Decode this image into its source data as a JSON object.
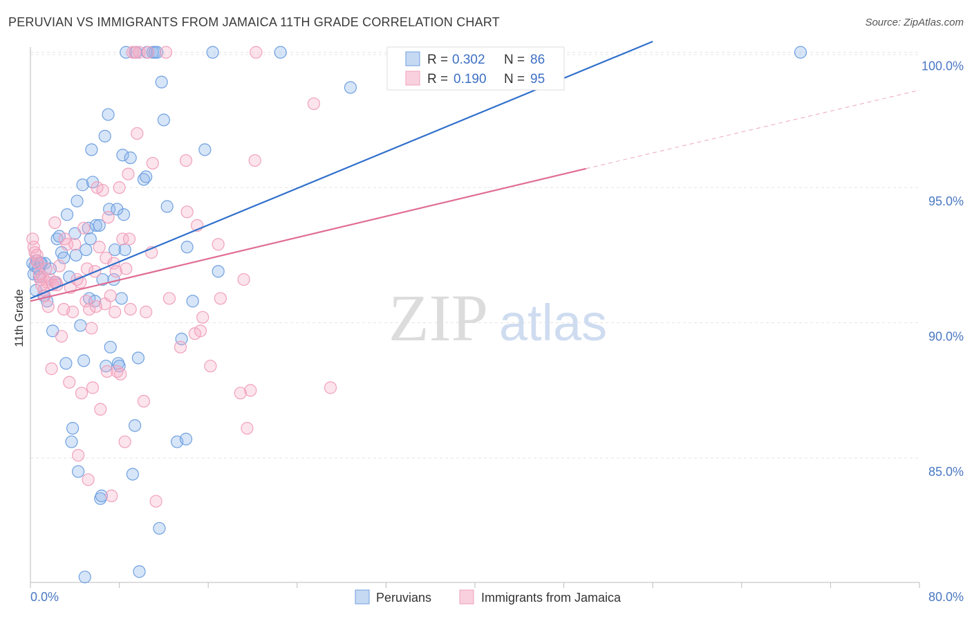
{
  "chart_data": {
    "type": "scatter",
    "title": "PERUVIAN VS IMMIGRANTS FROM JAMAICA 11TH GRADE CORRELATION CHART",
    "source": "Source: ZipAtlas.com",
    "ylabel": "11th Grade",
    "xlabel": "",
    "xlim": [
      0,
      80
    ],
    "ylim": [
      80.4,
      100.4
    ],
    "x_tick_labels": [
      "0.0%",
      "80.0%"
    ],
    "y_ticks": [
      85,
      90,
      95,
      100
    ],
    "y_tick_labels": [
      "85.0%",
      "90.0%",
      "95.0%",
      "100.0%"
    ],
    "watermark": {
      "zip": "ZIP",
      "atlas": "atlas"
    },
    "colors": {
      "blue": "#6fa0e0",
      "blue_line": "#2f6fcc",
      "pink": "#f0a0bc",
      "pink_line": "#e06c94",
      "tick": "#4a78c2"
    },
    "legend": [
      {
        "r_label": "R =",
        "r_value": "0.302",
        "n_label": "N =",
        "n_value": "86"
      },
      {
        "r_label": "R =",
        "r_value": "0.190",
        "n_label": "N =",
        "n_value": "95"
      }
    ],
    "series": [
      {
        "name": "Peruvians",
        "color": "#6fa0e0",
        "trend": {
          "x0": 0,
          "y0": 90.9,
          "x1": 56,
          "y1": 100.4
        },
        "points": [
          [
            0.2,
            92.2
          ],
          [
            0.3,
            91.8
          ],
          [
            0.4,
            92.1
          ],
          [
            0.5,
            91.2
          ],
          [
            0.6,
            92.3
          ],
          [
            0.7,
            92.0
          ],
          [
            0.8,
            91.7
          ],
          [
            0.9,
            92.2
          ],
          [
            1.0,
            92.2
          ],
          [
            1.2,
            91.0
          ],
          [
            1.3,
            92.2
          ],
          [
            1.5,
            90.8
          ],
          [
            1.8,
            92.0
          ],
          [
            2.0,
            89.7
          ],
          [
            2.2,
            91.5
          ],
          [
            2.4,
            93.1
          ],
          [
            2.6,
            93.2
          ],
          [
            2.8,
            92.6
          ],
          [
            3.0,
            92.4
          ],
          [
            3.2,
            88.5
          ],
          [
            3.3,
            94.0
          ],
          [
            3.5,
            91.7
          ],
          [
            3.7,
            85.6
          ],
          [
            3.8,
            86.1
          ],
          [
            4.0,
            93.3
          ],
          [
            4.1,
            92.5
          ],
          [
            4.2,
            94.5
          ],
          [
            4.3,
            84.5
          ],
          [
            4.5,
            89.9
          ],
          [
            4.7,
            95.1
          ],
          [
            4.8,
            88.6
          ],
          [
            4.9,
            80.6
          ],
          [
            5.0,
            92.7
          ],
          [
            5.2,
            93.5
          ],
          [
            5.3,
            90.9
          ],
          [
            5.4,
            93.1
          ],
          [
            5.5,
            96.4
          ],
          [
            5.6,
            95.2
          ],
          [
            5.8,
            90.8
          ],
          [
            5.9,
            93.6
          ],
          [
            6.2,
            93.6
          ],
          [
            6.3,
            83.5
          ],
          [
            6.4,
            83.6
          ],
          [
            6.5,
            91.6
          ],
          [
            6.7,
            96.9
          ],
          [
            6.8,
            88.4
          ],
          [
            7.0,
            97.7
          ],
          [
            7.1,
            94.2
          ],
          [
            7.2,
            89.1
          ],
          [
            7.5,
            91.6
          ],
          [
            7.6,
            92.7
          ],
          [
            7.8,
            94.2
          ],
          [
            7.9,
            88.5
          ],
          [
            8.0,
            88.4
          ],
          [
            8.2,
            90.9
          ],
          [
            8.3,
            96.2
          ],
          [
            8.4,
            94.0
          ],
          [
            8.5,
            92.7
          ],
          [
            8.6,
            100.0
          ],
          [
            9.0,
            96.1
          ],
          [
            9.2,
            84.4
          ],
          [
            9.4,
            86.2
          ],
          [
            9.5,
            100.0
          ],
          [
            9.7,
            88.7
          ],
          [
            9.8,
            80.8
          ],
          [
            10.2,
            95.3
          ],
          [
            10.4,
            95.4
          ],
          [
            10.5,
            100.0
          ],
          [
            11.0,
            100.0
          ],
          [
            11.2,
            100.0
          ],
          [
            11.4,
            100.0
          ],
          [
            11.6,
            82.4
          ],
          [
            11.8,
            98.9
          ],
          [
            12.0,
            97.5
          ],
          [
            12.3,
            94.3
          ],
          [
            13.2,
            85.6
          ],
          [
            13.6,
            89.4
          ],
          [
            14.0,
            85.7
          ],
          [
            14.1,
            92.8
          ],
          [
            14.6,
            90.8
          ],
          [
            15.7,
            96.4
          ],
          [
            16.4,
            100.0
          ],
          [
            16.9,
            91.9
          ],
          [
            22.5,
            100.0
          ],
          [
            28.8,
            98.7
          ],
          [
            69.3,
            100.0
          ]
        ]
      },
      {
        "name": "Immigrants from Jamaica",
        "color": "#f0a0bc",
        "trend": {
          "x0": 0,
          "y0": 90.8,
          "x1": 50,
          "y1": 95.7,
          "x_dash_end": 80,
          "y_dash_end": 98.6
        },
        "points": [
          [
            0.2,
            93.1
          ],
          [
            0.3,
            92.8
          ],
          [
            0.4,
            92.6
          ],
          [
            0.5,
            92.3
          ],
          [
            0.6,
            92.5
          ],
          [
            0.7,
            92.2
          ],
          [
            0.8,
            91.8
          ],
          [
            0.9,
            91.6
          ],
          [
            1.0,
            91.4
          ],
          [
            1.1,
            91.7
          ],
          [
            1.2,
            91.2
          ],
          [
            1.3,
            91.0
          ],
          [
            1.4,
            92.0
          ],
          [
            1.5,
            91.5
          ],
          [
            1.6,
            90.6
          ],
          [
            1.8,
            91.6
          ],
          [
            1.9,
            88.3
          ],
          [
            2.0,
            91.4
          ],
          [
            2.2,
            93.7
          ],
          [
            2.3,
            91.5
          ],
          [
            2.4,
            91.4
          ],
          [
            2.6,
            92.1
          ],
          [
            2.8,
            89.5
          ],
          [
            3.0,
            90.5
          ],
          [
            3.1,
            93.1
          ],
          [
            3.3,
            92.9
          ],
          [
            3.5,
            87.8
          ],
          [
            3.6,
            91.3
          ],
          [
            3.8,
            90.4
          ],
          [
            4.0,
            92.9
          ],
          [
            4.2,
            91.6
          ],
          [
            4.3,
            85.1
          ],
          [
            4.5,
            91.5
          ],
          [
            4.6,
            87.4
          ],
          [
            4.8,
            93.5
          ],
          [
            5.0,
            90.8
          ],
          [
            5.1,
            92.0
          ],
          [
            5.2,
            84.2
          ],
          [
            5.3,
            90.5
          ],
          [
            5.5,
            89.8
          ],
          [
            5.6,
            87.6
          ],
          [
            5.8,
            91.9
          ],
          [
            5.9,
            90.6
          ],
          [
            6.0,
            95.0
          ],
          [
            6.2,
            92.8
          ],
          [
            6.3,
            86.8
          ],
          [
            6.5,
            94.9
          ],
          [
            6.7,
            90.7
          ],
          [
            6.8,
            92.4
          ],
          [
            6.9,
            88.2
          ],
          [
            7.0,
            93.9
          ],
          [
            7.2,
            91.0
          ],
          [
            7.3,
            83.6
          ],
          [
            7.5,
            92.2
          ],
          [
            7.6,
            90.4
          ],
          [
            7.7,
            91.9
          ],
          [
            7.8,
            88.2
          ],
          [
            8.0,
            95.0
          ],
          [
            8.1,
            88.1
          ],
          [
            8.3,
            93.1
          ],
          [
            8.5,
            85.6
          ],
          [
            8.6,
            92.0
          ],
          [
            8.8,
            95.5
          ],
          [
            8.9,
            93.1
          ],
          [
            9.0,
            90.5
          ],
          [
            9.2,
            100.0
          ],
          [
            9.4,
            100.0
          ],
          [
            9.6,
            97.0
          ],
          [
            9.8,
            100.0
          ],
          [
            10.2,
            87.1
          ],
          [
            10.4,
            90.4
          ],
          [
            10.6,
            100.0
          ],
          [
            10.9,
            92.6
          ],
          [
            11.0,
            95.9
          ],
          [
            11.3,
            83.4
          ],
          [
            12.2,
            100.0
          ],
          [
            12.5,
            90.9
          ],
          [
            13.5,
            89.1
          ],
          [
            14.0,
            96.0
          ],
          [
            14.1,
            94.1
          ],
          [
            14.8,
            89.6
          ],
          [
            15.0,
            93.6
          ],
          [
            15.3,
            89.7
          ],
          [
            15.5,
            90.2
          ],
          [
            16.2,
            88.4
          ],
          [
            16.9,
            92.9
          ],
          [
            17.1,
            90.9
          ],
          [
            18.9,
            87.4
          ],
          [
            19.2,
            91.6
          ],
          [
            19.5,
            86.1
          ],
          [
            19.8,
            87.5
          ],
          [
            20.2,
            96.0
          ],
          [
            20.3,
            100.0
          ],
          [
            25.5,
            98.1
          ],
          [
            27.0,
            87.6
          ]
        ]
      }
    ]
  }
}
